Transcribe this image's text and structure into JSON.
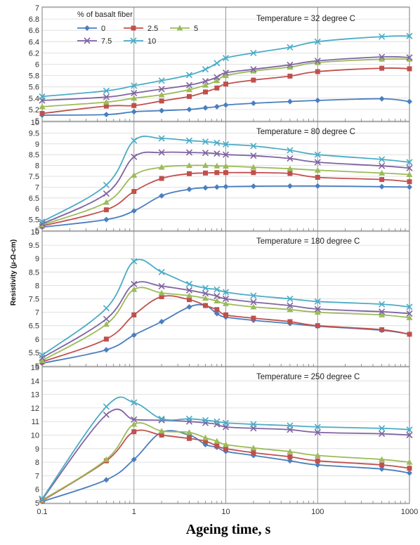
{
  "chart_data": {
    "type": "line",
    "xlabel": "Ageing time, s",
    "ylabel": "Resistivity (µ-Ω-cm)",
    "x_scale": "log",
    "x_ticks": [
      "0.1",
      "1",
      "10",
      "100",
      "1000"
    ],
    "x": [
      0.1,
      0.5,
      1,
      2,
      4,
      6,
      8,
      10,
      20,
      50,
      100,
      500,
      1000
    ],
    "legend": {
      "title": "% of basalt fiber",
      "placement": "top-left",
      "entries": [
        "0",
        "2.5",
        "5",
        "7.5",
        "10"
      ]
    },
    "series_style": [
      {
        "name": "0",
        "color": "#4a7ebf",
        "marker": "diamond"
      },
      {
        "name": "2.5",
        "color": "#c0504d",
        "marker": "square"
      },
      {
        "name": "5",
        "color": "#9bbb59",
        "marker": "triangle"
      },
      {
        "name": "7.5",
        "color": "#8064a2",
        "marker": "x"
      },
      {
        "name": "10",
        "color": "#4bacc6",
        "marker": "x"
      }
    ],
    "grid": true,
    "panels": [
      {
        "label": "Temperature = 32 degree C",
        "ylim": [
          5,
          7
        ],
        "yticks": [
          "5",
          "5.2",
          "5.4",
          "5.6",
          "5.8",
          "6",
          "6.2",
          "6.4",
          "6.6",
          "6.8",
          "7"
        ],
        "series": [
          {
            "name": "0",
            "values": [
              5.1,
              5.11,
              5.16,
              5.18,
              5.2,
              5.23,
              5.25,
              5.28,
              5.31,
              5.34,
              5.36,
              5.39,
              5.34
            ]
          },
          {
            "name": "2.5",
            "values": [
              5.13,
              5.26,
              5.27,
              5.35,
              5.43,
              5.51,
              5.58,
              5.65,
              5.72,
              5.79,
              5.87,
              5.93,
              5.92
            ]
          },
          {
            "name": "5",
            "values": [
              5.25,
              5.33,
              5.4,
              5.46,
              5.55,
              5.63,
              5.71,
              5.8,
              5.88,
              5.95,
              6.03,
              6.09,
              6.09
            ]
          },
          {
            "name": "7.5",
            "values": [
              5.36,
              5.42,
              5.49,
              5.56,
              5.63,
              5.7,
              5.77,
              5.85,
              5.91,
              5.99,
              6.06,
              6.13,
              6.12
            ]
          },
          {
            "name": "10",
            "values": [
              5.43,
              5.53,
              5.62,
              5.71,
              5.81,
              5.91,
              6.02,
              6.11,
              6.2,
              6.3,
              6.4,
              6.49,
              6.5
            ]
          }
        ]
      },
      {
        "label": "Temperature = 80 degree C",
        "ylim": [
          5,
          10
        ],
        "yticks": [
          "5",
          "5.5",
          "6",
          "6.5",
          "7",
          "7.5",
          "8",
          "8.5",
          "9",
          "9.5",
          "10"
        ],
        "series": [
          {
            "name": "0",
            "values": [
              5.15,
              5.5,
              5.9,
              6.6,
              6.9,
              6.97,
              7.0,
              7.02,
              7.04,
              7.05,
              7.05,
              7.02,
              7.0
            ]
          },
          {
            "name": "2.5",
            "values": [
              5.2,
              5.95,
              6.8,
              7.4,
              7.62,
              7.65,
              7.67,
              7.67,
              7.67,
              7.63,
              7.45,
              7.35,
              7.25
            ]
          },
          {
            "name": "5",
            "values": [
              5.25,
              6.3,
              7.55,
              7.92,
              8.0,
              8.0,
              7.98,
              7.97,
              7.92,
              7.85,
              7.78,
              7.65,
              7.58
            ]
          },
          {
            "name": "7.5",
            "values": [
              5.3,
              6.7,
              8.4,
              8.6,
              8.6,
              8.58,
              8.55,
              8.5,
              8.45,
              8.32,
              8.15,
              7.98,
              7.88
            ]
          },
          {
            "name": "10",
            "values": [
              5.4,
              7.1,
              9.15,
              9.25,
              9.15,
              9.1,
              9.05,
              8.98,
              8.9,
              8.7,
              8.5,
              8.28,
              8.15
            ]
          }
        ]
      },
      {
        "label": "Temperature = 180 degree C",
        "ylim": [
          5,
          10
        ],
        "yticks": [
          "5",
          "5.5",
          "6",
          "6.5",
          "7",
          "7.5",
          "8",
          "8.5",
          "9",
          "9.5",
          "10"
        ],
        "series": [
          {
            "name": "0",
            "values": [
              5.1,
              5.6,
              6.15,
              6.65,
              7.2,
              7.25,
              6.95,
              6.82,
              6.7,
              6.58,
              6.48,
              6.33,
              6.18
            ]
          },
          {
            "name": "2.5",
            "values": [
              5.15,
              6.0,
              6.9,
              7.58,
              7.47,
              7.25,
              7.1,
              6.9,
              6.78,
              6.65,
              6.5,
              6.35,
              6.18
            ]
          },
          {
            "name": "5",
            "values": [
              5.2,
              6.55,
              7.85,
              7.72,
              7.62,
              7.52,
              7.42,
              7.32,
              7.2,
              7.1,
              7.0,
              6.9,
              6.8
            ]
          },
          {
            "name": "7.5",
            "values": [
              5.3,
              6.75,
              8.05,
              7.97,
              7.82,
              7.7,
              7.6,
              7.5,
              7.38,
              7.25,
              7.12,
              7.02,
              6.95
            ]
          },
          {
            "name": "10",
            "values": [
              5.4,
              7.15,
              8.9,
              8.5,
              8.05,
              7.9,
              7.85,
              7.75,
              7.62,
              7.5,
              7.4,
              7.3,
              7.2
            ]
          }
        ]
      },
      {
        "label": "Temperature = 250 degree C",
        "ylim": [
          5,
          15
        ],
        "yticks": [
          "5",
          "6",
          "7",
          "8",
          "9",
          "10",
          "11",
          "12",
          "13",
          "14",
          "15"
        ],
        "series": [
          {
            "name": "0",
            "values": [
              5.1,
              6.7,
              8.2,
              10.2,
              10.0,
              9.3,
              9.1,
              8.8,
              8.5,
              8.1,
              7.8,
              7.5,
              7.2
            ]
          },
          {
            "name": "2.5",
            "values": [
              5.15,
              8.1,
              10.25,
              10.0,
              9.75,
              9.55,
              9.2,
              9.0,
              8.7,
              8.4,
              8.1,
              7.8,
              7.55
            ]
          },
          {
            "name": "5",
            "values": [
              5.2,
              8.2,
              10.8,
              10.3,
              10.2,
              9.8,
              9.55,
              9.3,
              9.05,
              8.78,
              8.5,
              8.2,
              8.0
            ]
          },
          {
            "name": "7.5",
            "values": [
              5.25,
              11.5,
              11.15,
              11.1,
              11.0,
              10.9,
              10.8,
              10.6,
              10.5,
              10.4,
              10.2,
              10.1,
              10.0
            ]
          },
          {
            "name": "10",
            "values": [
              5.3,
              12.1,
              12.4,
              11.2,
              11.2,
              11.1,
              11.0,
              10.9,
              10.8,
              10.7,
              10.6,
              10.5,
              10.4
            ]
          }
        ]
      }
    ]
  }
}
